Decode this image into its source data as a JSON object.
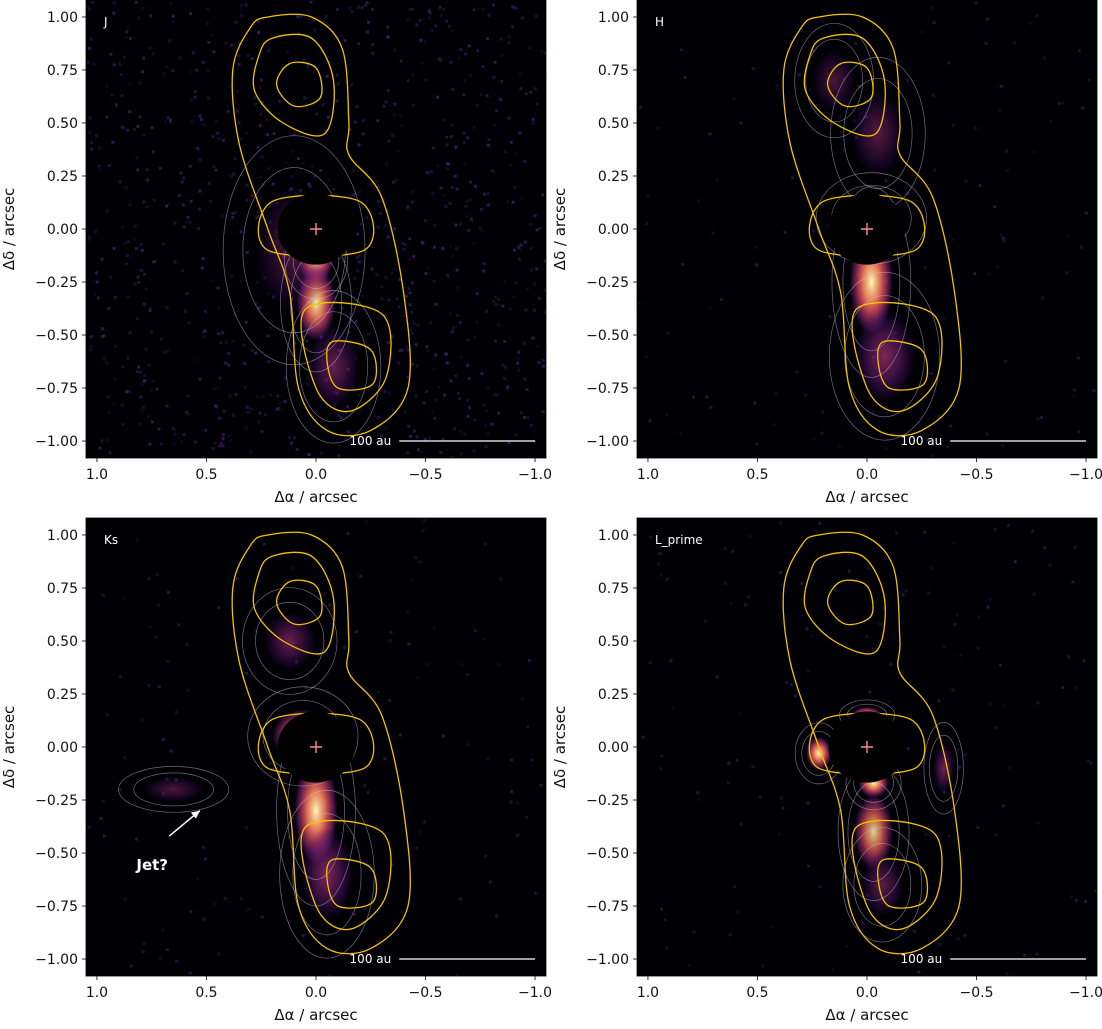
{
  "chart_data": [
    {
      "type": "heatmap",
      "band_label": "J",
      "xlabel": "Δα / arcsec",
      "ylabel": "Δδ / arcsec",
      "xlim": [
        1.05,
        -1.05
      ],
      "ylim": [
        -1.08,
        1.08
      ],
      "xticks": [
        1.0,
        0.5,
        0.0,
        -0.5,
        -1.0
      ],
      "xtick_labels": [
        "1.0",
        "0.5",
        "0.0",
        "−0.5",
        "−1.0"
      ],
      "yticks": [
        1.0,
        0.75,
        0.5,
        0.25,
        0.0,
        -0.25,
        -0.5,
        -0.75,
        -1.0
      ],
      "ytick_labels": [
        "1.00",
        "0.75",
        "0.50",
        "0.25",
        "0.00",
        "−0.25",
        "−0.50",
        "−0.75",
        "−1.00"
      ],
      "scale_bar": {
        "label": "100 au",
        "x_start": -0.38,
        "x_end": -1.0,
        "y": -1.0
      },
      "emission_lobes": [
        {
          "x": 0.0,
          "y": -0.15,
          "rx": 0.08,
          "ry": 0.1,
          "peak": 0.95
        },
        {
          "x": 0.0,
          "y": -0.35,
          "rx": 0.09,
          "ry": 0.18,
          "peak": 0.6
        },
        {
          "x": -0.08,
          "y": -0.65,
          "rx": 0.12,
          "ry": 0.2,
          "peak": 0.3
        },
        {
          "x": 0.1,
          "y": -0.1,
          "rx": 0.18,
          "ry": 0.3,
          "peak": 0.15
        }
      ],
      "background_noise": "high",
      "has_jet_annotation": false
    },
    {
      "type": "heatmap",
      "band_label": "H",
      "xlabel": "Δα / arcsec",
      "ylabel": "Δδ / arcsec",
      "xlim": [
        1.05,
        -1.05
      ],
      "ylim": [
        -1.08,
        1.08
      ],
      "xticks": [
        1.0,
        0.5,
        0.0,
        -0.5,
        -1.0
      ],
      "xtick_labels": [
        "1.0",
        "0.5",
        "0.0",
        "−0.5",
        "−1.0"
      ],
      "yticks": [
        1.0,
        0.75,
        0.5,
        0.25,
        0.0,
        -0.25,
        -0.5,
        -0.75,
        -1.0
      ],
      "ytick_labels": [
        "1.00",
        "0.75",
        "0.50",
        "0.25",
        "0.00",
        "−0.25",
        "−0.50",
        "−0.75",
        "−1.00"
      ],
      "scale_bar": {
        "label": "100 au",
        "x_start": -0.38,
        "x_end": -1.0,
        "y": -1.0
      },
      "emission_lobes": [
        {
          "x": -0.02,
          "y": 0.05,
          "rx": 0.14,
          "ry": 0.12,
          "peak": 0.95
        },
        {
          "x": -0.02,
          "y": -0.25,
          "rx": 0.1,
          "ry": 0.25,
          "peak": 0.75
        },
        {
          "x": -0.08,
          "y": -0.6,
          "rx": 0.14,
          "ry": 0.22,
          "peak": 0.45
        },
        {
          "x": -0.05,
          "y": 0.45,
          "rx": 0.12,
          "ry": 0.2,
          "peak": 0.2
        },
        {
          "x": 0.15,
          "y": 0.7,
          "rx": 0.1,
          "ry": 0.15,
          "peak": 0.12
        }
      ],
      "background_noise": "low",
      "has_jet_annotation": false
    },
    {
      "type": "heatmap",
      "band_label": "Ks",
      "xlabel": "Δα / arcsec",
      "ylabel": "Δδ / arcsec",
      "xlim": [
        1.05,
        -1.05
      ],
      "ylim": [
        -1.08,
        1.08
      ],
      "xticks": [
        1.0,
        0.5,
        0.0,
        -0.5,
        -1.0
      ],
      "xtick_labels": [
        "1.0",
        "0.5",
        "0.0",
        "−0.5",
        "−1.0"
      ],
      "yticks": [
        1.0,
        0.75,
        0.5,
        0.25,
        0.0,
        -0.25,
        -0.5,
        -0.75,
        -1.0
      ],
      "ytick_labels": [
        "1.00",
        "0.75",
        "0.50",
        "0.25",
        "0.00",
        "−0.25",
        "−0.50",
        "−0.75",
        "−1.00"
      ],
      "scale_bar": {
        "label": "100 au",
        "x_start": -0.38,
        "x_end": -1.0,
        "y": -1.0
      },
      "emission_lobes": [
        {
          "x": 0.06,
          "y": 0.05,
          "rx": 0.14,
          "ry": 0.13,
          "peak": 1.0
        },
        {
          "x": 0.0,
          "y": -0.3,
          "rx": 0.1,
          "ry": 0.25,
          "peak": 0.75
        },
        {
          "x": -0.05,
          "y": -0.6,
          "rx": 0.12,
          "ry": 0.22,
          "peak": 0.45
        },
        {
          "x": 0.12,
          "y": 0.5,
          "rx": 0.12,
          "ry": 0.14,
          "peak": 0.3
        },
        {
          "x": 0.65,
          "y": -0.2,
          "rx": 0.14,
          "ry": 0.06,
          "peak": 0.12
        }
      ],
      "background_noise": "low",
      "has_jet_annotation": true,
      "annotation": {
        "text": "Jet?",
        "text_x": 0.82,
        "text_y": -0.58,
        "arrow_from": [
          0.67,
          -0.42
        ],
        "arrow_to": [
          0.53,
          -0.3
        ]
      }
    },
    {
      "type": "heatmap",
      "band_label": "L_prime",
      "xlabel": "Δα / arcsec",
      "ylabel": "Δδ / arcsec",
      "xlim": [
        1.05,
        -1.05
      ],
      "ylim": [
        -1.08,
        1.08
      ],
      "xticks": [
        1.0,
        0.5,
        0.0,
        -0.5,
        -1.0
      ],
      "xtick_labels": [
        "1.0",
        "0.5",
        "0.0",
        "−0.5",
        "−1.0"
      ],
      "yticks": [
        1.0,
        0.75,
        0.5,
        0.25,
        0.0,
        -0.25,
        -0.5,
        -0.75,
        -1.0
      ],
      "ytick_labels": [
        "1.00",
        "0.75",
        "0.50",
        "0.25",
        "0.00",
        "−0.25",
        "−0.50",
        "−0.75",
        "−1.00"
      ],
      "scale_bar": {
        "label": "100 au",
        "x_start": -0.38,
        "x_end": -1.0,
        "y": -1.0
      },
      "emission_lobes": [
        {
          "x": -0.03,
          "y": -0.17,
          "rx": 0.07,
          "ry": 0.07,
          "peak": 1.0
        },
        {
          "x": 0.22,
          "y": -0.03,
          "rx": 0.06,
          "ry": 0.08,
          "peak": 0.85
        },
        {
          "x": 0.0,
          "y": 0.15,
          "rx": 0.07,
          "ry": 0.04,
          "peak": 0.7
        },
        {
          "x": -0.03,
          "y": -0.4,
          "rx": 0.09,
          "ry": 0.18,
          "peak": 0.5
        },
        {
          "x": -0.35,
          "y": -0.1,
          "rx": 0.05,
          "ry": 0.12,
          "peak": 0.35
        },
        {
          "x": -0.07,
          "y": -0.65,
          "rx": 0.1,
          "ry": 0.15,
          "peak": 0.25
        }
      ],
      "background_noise": "low",
      "has_jet_annotation": false
    }
  ],
  "overlay": {
    "mask_center": [
      0.0,
      0.0
    ],
    "mask_radius_arcsec": 0.08,
    "center_marker": "plus",
    "contour_color": "#f2c200",
    "contour_levels": [
      {
        "shape": "outer-envelope",
        "points": [
          [
            0.22,
            1.0
          ],
          [
            0.02,
            1.0
          ],
          [
            -0.12,
            0.85
          ],
          [
            -0.15,
            0.5
          ],
          [
            -0.15,
            0.35
          ],
          [
            -0.3,
            0.15
          ],
          [
            -0.4,
            -0.3
          ],
          [
            -0.42,
            -0.75
          ],
          [
            -0.25,
            -0.95
          ],
          [
            -0.05,
            -0.95
          ],
          [
            0.08,
            -0.75
          ],
          [
            0.12,
            -0.3
          ],
          [
            0.22,
            0.0
          ],
          [
            0.35,
            0.4
          ],
          [
            0.38,
            0.75
          ],
          [
            0.3,
            0.95
          ]
        ]
      },
      {
        "shape": "north-lobe-mid",
        "points": [
          [
            0.2,
            0.9
          ],
          [
            0.02,
            0.9
          ],
          [
            -0.08,
            0.7
          ],
          [
            -0.04,
            0.45
          ],
          [
            0.15,
            0.5
          ],
          [
            0.28,
            0.65
          ],
          [
            0.26,
            0.82
          ]
        ]
      },
      {
        "shape": "north-lobe-inner",
        "points": [
          [
            0.12,
            0.78
          ],
          [
            0.0,
            0.76
          ],
          [
            -0.02,
            0.62
          ],
          [
            0.1,
            0.58
          ],
          [
            0.18,
            0.68
          ]
        ]
      },
      {
        "shape": "south-lobe-mid",
        "points": [
          [
            0.05,
            -0.38
          ],
          [
            -0.3,
            -0.4
          ],
          [
            -0.32,
            -0.7
          ],
          [
            -0.15,
            -0.86
          ],
          [
            0.0,
            -0.75
          ]
        ]
      },
      {
        "shape": "south-lobe-inner",
        "points": [
          [
            -0.08,
            -0.53
          ],
          [
            -0.25,
            -0.57
          ],
          [
            -0.26,
            -0.73
          ],
          [
            -0.1,
            -0.75
          ],
          [
            -0.05,
            -0.62
          ]
        ]
      },
      {
        "shape": "center-ring-outer",
        "points": [
          [
            0.2,
            0.13
          ],
          [
            -0.2,
            0.13
          ],
          [
            -0.22,
            -0.1
          ],
          [
            0.22,
            -0.1
          ]
        ]
      },
      {
        "shape": "center-ring-inner",
        "points": [
          [
            0.1,
            0.05
          ],
          [
            -0.1,
            0.05
          ],
          [
            -0.1,
            -0.03
          ],
          [
            0.1,
            -0.03
          ]
        ]
      }
    ]
  }
}
